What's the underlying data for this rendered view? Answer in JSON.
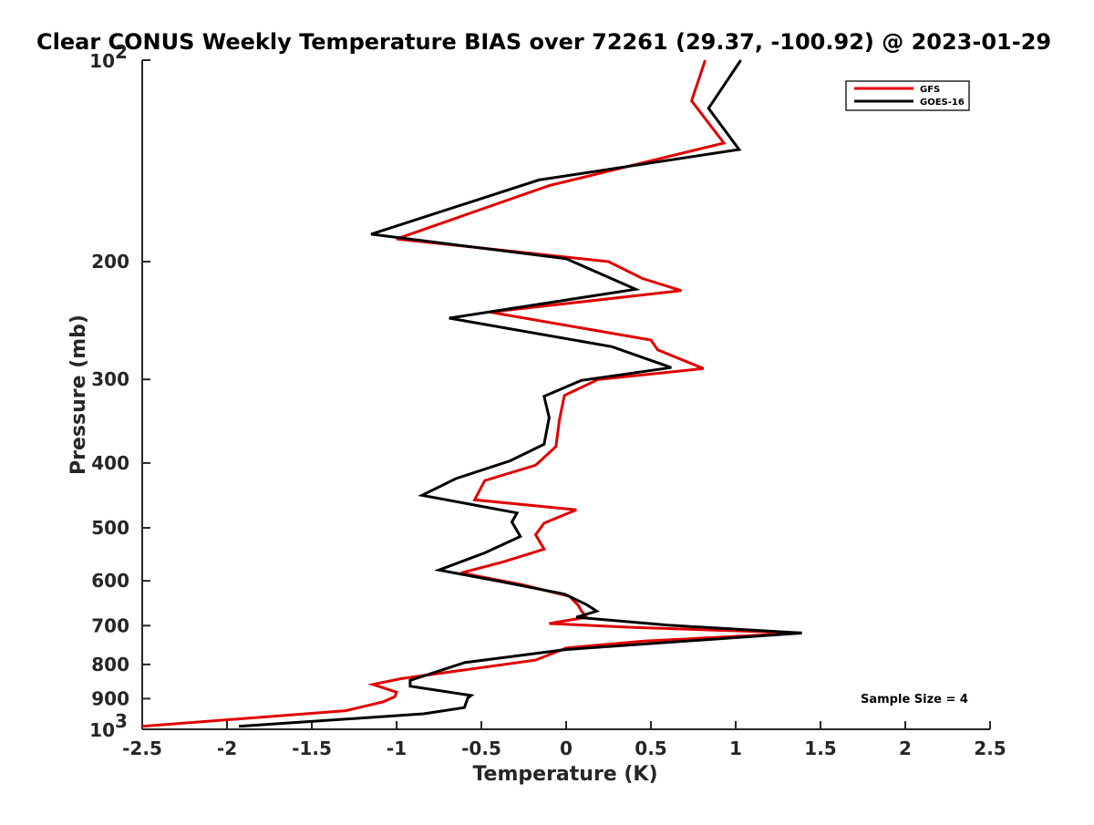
{
  "chart_data": {
    "type": "line",
    "title": "Clear CONUS Weekly Temperature BIAS over 72261 (29.37, -100.92) @ 2023-01-29",
    "xlabel": "Temperature (K)",
    "ylabel": "Pressure (mb)",
    "xlim": [
      -2.5,
      2.5
    ],
    "ylim": [
      100,
      1000
    ],
    "yscale": "log",
    "y_reversed": true,
    "grid": false,
    "legend_position": "top-right",
    "x_ticks": [
      -2.5,
      -2,
      -1.5,
      -1,
      -0.5,
      0,
      0.5,
      1,
      1.5,
      2,
      2.5
    ],
    "x_tick_labels": [
      "-2.5",
      "-2",
      "-1.5",
      "-1",
      "-0.5",
      "0",
      "0.5",
      "1",
      "1.5",
      "2",
      "2.5"
    ],
    "y_ticks": [
      100,
      200,
      300,
      400,
      500,
      600,
      700,
      800,
      900,
      1000
    ],
    "y_tick_labels": [
      {
        "base": "10",
        "exp": "2"
      },
      {
        "base": "200",
        "exp": ""
      },
      {
        "base": "300",
        "exp": ""
      },
      {
        "base": "400",
        "exp": ""
      },
      {
        "base": "500",
        "exp": ""
      },
      {
        "base": "600",
        "exp": ""
      },
      {
        "base": "700",
        "exp": ""
      },
      {
        "base": "800",
        "exp": ""
      },
      {
        "base": "900",
        "exp": ""
      },
      {
        "base": "10",
        "exp": "3"
      }
    ],
    "annotation": "Sample Size = 4",
    "series": [
      {
        "name": "GFS",
        "color": "#e00000",
        "points": [
          [
            0.82,
            100
          ],
          [
            0.74,
            115
          ],
          [
            0.93,
            133
          ],
          [
            -0.1,
            154
          ],
          [
            -1.0,
            185
          ],
          [
            0.25,
            200
          ],
          [
            0.45,
            212
          ],
          [
            0.68,
            221
          ],
          [
            -0.45,
            238
          ],
          [
            0.5,
            262
          ],
          [
            0.54,
            271
          ],
          [
            0.81,
            289
          ],
          [
            0.19,
            300
          ],
          [
            -0.01,
            317
          ],
          [
            -0.04,
            345
          ],
          [
            -0.06,
            378
          ],
          [
            -0.18,
            403
          ],
          [
            -0.48,
            425
          ],
          [
            -0.54,
            454
          ],
          [
            0.06,
            470
          ],
          [
            -0.13,
            492
          ],
          [
            -0.18,
            512
          ],
          [
            -0.13,
            538
          ],
          [
            -0.37,
            562
          ],
          [
            -0.62,
            584
          ],
          [
            -0.26,
            608
          ],
          [
            0.02,
            633
          ],
          [
            0.07,
            652
          ],
          [
            0.09,
            665
          ],
          [
            0.12,
            680
          ],
          [
            -0.1,
            695
          ],
          [
            0.38,
            704
          ],
          [
            1.39,
            718
          ],
          [
            0.46,
            738
          ],
          [
            0.0,
            756
          ],
          [
            -0.18,
            788
          ],
          [
            -0.97,
            840
          ],
          [
            -1.14,
            857
          ],
          [
            -1.0,
            880
          ],
          [
            -1.01,
            894
          ],
          [
            -1.08,
            910
          ],
          [
            -1.3,
            938
          ],
          [
            -2.5,
            990
          ]
        ]
      },
      {
        "name": "GOES-16",
        "color": "#000000",
        "points": [
          [
            1.03,
            100
          ],
          [
            0.84,
            118
          ],
          [
            1.02,
            136
          ],
          [
            -0.16,
            151
          ],
          [
            -1.15,
            182
          ],
          [
            0.0,
            198
          ],
          [
            0.41,
            220
          ],
          [
            -0.69,
            243
          ],
          [
            0.27,
            268
          ],
          [
            0.62,
            288
          ],
          [
            0.09,
            301
          ],
          [
            -0.13,
            318
          ],
          [
            -0.1,
            342
          ],
          [
            -0.13,
            375
          ],
          [
            -0.33,
            397
          ],
          [
            -0.65,
            422
          ],
          [
            -0.85,
            447
          ],
          [
            -0.29,
            475
          ],
          [
            -0.32,
            490
          ],
          [
            -0.27,
            515
          ],
          [
            -0.48,
            545
          ],
          [
            -0.75,
            578
          ],
          [
            -0.38,
            602
          ],
          [
            -0.01,
            628
          ],
          [
            0.12,
            651
          ],
          [
            0.18,
            666
          ],
          [
            0.06,
            680
          ],
          [
            0.6,
            699
          ],
          [
            1.39,
            718
          ],
          [
            0.0,
            760
          ],
          [
            -0.6,
            795
          ],
          [
            -0.92,
            845
          ],
          [
            -0.92,
            862
          ],
          [
            -0.56,
            890
          ],
          [
            -0.58,
            898
          ],
          [
            -0.6,
            928
          ],
          [
            -0.84,
            948
          ],
          [
            -1.93,
            990
          ]
        ]
      }
    ]
  }
}
